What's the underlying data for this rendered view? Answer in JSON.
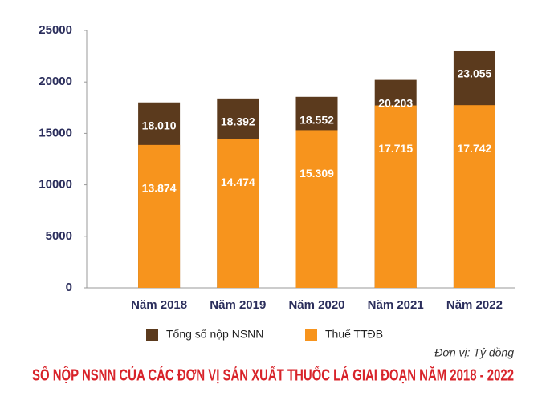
{
  "chart_data": {
    "type": "bar",
    "barmode": "overlay",
    "title": "SỐ NỘP NSNN CỦA CÁC ĐƠN VỊ SẢN XUẤT THUỐC LÁ GIAI ĐOẠN NĂM 2018 - 2022",
    "unit_note": "Đơn vị: Tỷ đồng",
    "categories": [
      "Năm 2018",
      "Năm 2019",
      "Năm 2020",
      "Năm 2021",
      "Năm 2022"
    ],
    "series": [
      {
        "name": "Tổng số nộp NSNN",
        "color": "#5b3a1d",
        "values": [
          18010,
          18392,
          18552,
          20203,
          23055
        ],
        "value_labels": [
          "18.010",
          "18.392",
          "18.552",
          "20.203",
          "23.055"
        ]
      },
      {
        "name": "Thuế TTĐB",
        "color": "#f7941d",
        "values": [
          13874,
          14474,
          15309,
          17715,
          17742
        ],
        "value_labels": [
          "13.874",
          "14.474",
          "15.309",
          "17.715",
          "17.742"
        ]
      }
    ],
    "ylim": [
      0,
      25000
    ],
    "yticks": [
      0,
      5000,
      10000,
      15000,
      20000,
      25000
    ],
    "grid": false
  }
}
